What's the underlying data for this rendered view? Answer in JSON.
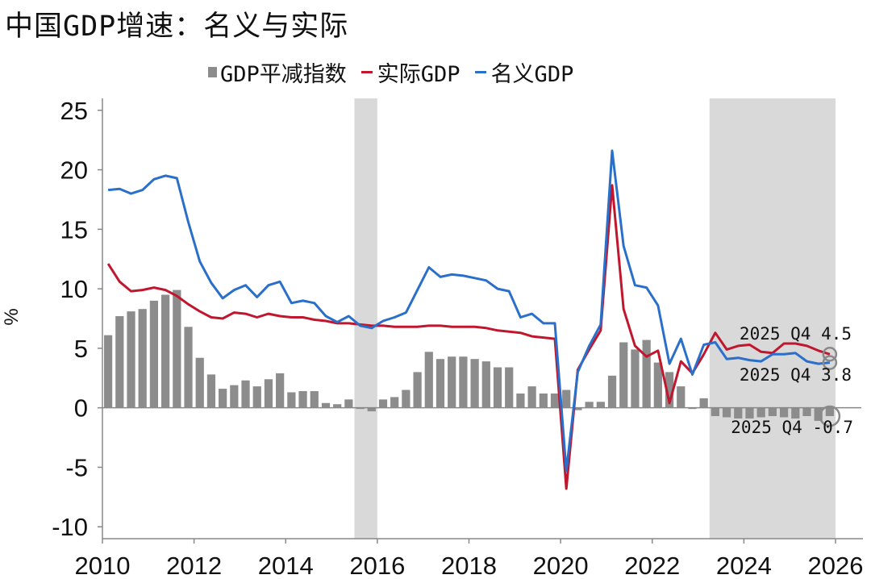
{
  "title": "中国GDP增速：名义与实际",
  "legend": {
    "deflator": "GDP平减指数",
    "real": "实际GDP",
    "nominal": "名义GDP"
  },
  "colors": {
    "deflator": "#8c8c8c",
    "real": "#c0172e",
    "nominal": "#2a6fc9",
    "shade": "#d9d9d9"
  },
  "annotations": [
    {
      "period": "2025 Q4",
      "value": "4.5"
    },
    {
      "period": "2025 Q4",
      "value": "3.8"
    },
    {
      "period": "2025 Q4",
      "value": "-0.7"
    }
  ],
  "chart_data": {
    "type": "bar+line",
    "ylabel": "%",
    "ylim": [
      -11,
      26
    ],
    "xlim": [
      2010,
      2026
    ],
    "yticks": [
      25,
      20,
      15,
      10,
      5,
      0,
      -5,
      -10
    ],
    "xticks": [
      2010,
      2012,
      2014,
      2016,
      2018,
      2020,
      2022,
      2024,
      2026
    ],
    "shaded_periods": [
      [
        2015.5,
        2016.0
      ],
      [
        2023.25,
        2026.0
      ]
    ],
    "x": [
      2010.125,
      2010.375,
      2010.625,
      2010.875,
      2011.125,
      2011.375,
      2011.625,
      2011.875,
      2012.125,
      2012.375,
      2012.625,
      2012.875,
      2013.125,
      2013.375,
      2013.625,
      2013.875,
      2014.125,
      2014.375,
      2014.625,
      2014.875,
      2015.125,
      2015.375,
      2015.625,
      2015.875,
      2016.125,
      2016.375,
      2016.625,
      2016.875,
      2017.125,
      2017.375,
      2017.625,
      2017.875,
      2018.125,
      2018.375,
      2018.625,
      2018.875,
      2019.125,
      2019.375,
      2019.625,
      2019.875,
      2020.125,
      2020.375,
      2020.625,
      2020.875,
      2021.125,
      2021.375,
      2021.625,
      2021.875,
      2022.125,
      2022.375,
      2022.625,
      2022.875,
      2023.125,
      2023.375,
      2023.625,
      2023.875,
      2024.125,
      2024.375,
      2024.625,
      2024.875,
      2025.125,
      2025.375,
      2025.625,
      2025.875
    ],
    "series": [
      {
        "name": "GDP平减指数",
        "kind": "bar",
        "values": [
          6.1,
          7.7,
          8.1,
          8.3,
          9.0,
          9.5,
          9.9,
          6.8,
          4.2,
          2.8,
          1.6,
          1.9,
          2.3,
          1.8,
          2.4,
          2.9,
          1.3,
          1.4,
          1.4,
          0.4,
          0.3,
          0.7,
          -0.1,
          -0.3,
          0.7,
          0.9,
          1.5,
          3.0,
          4.7,
          4.1,
          4.3,
          4.3,
          4.1,
          3.9,
          3.4,
          3.4,
          1.2,
          1.8,
          1.2,
          1.2,
          1.5,
          -0.2,
          0.5,
          0.5,
          2.7,
          5.5,
          4.9,
          5.7,
          3.8,
          3.0,
          1.8,
          -0.1,
          0.8,
          -0.7,
          -0.8,
          -0.9,
          -0.9,
          -0.8,
          -0.7,
          -0.8,
          -0.9,
          -0.7,
          -1.1,
          -0.7
        ]
      },
      {
        "name": "实际GDP",
        "kind": "line",
        "values": [
          12.1,
          10.6,
          9.8,
          9.9,
          10.1,
          9.9,
          9.4,
          8.7,
          8.1,
          7.6,
          7.5,
          8.0,
          7.9,
          7.6,
          7.9,
          7.7,
          7.6,
          7.6,
          7.4,
          7.3,
          7.1,
          7.1,
          7.0,
          6.9,
          6.9,
          6.8,
          6.8,
          6.8,
          6.9,
          6.9,
          6.8,
          6.8,
          6.8,
          6.7,
          6.5,
          6.4,
          6.3,
          6.0,
          5.9,
          5.8,
          -6.8,
          3.2,
          4.9,
          6.5,
          18.7,
          8.3,
          5.2,
          4.3,
          4.8,
          0.4,
          3.9,
          2.9,
          4.5,
          6.3,
          4.9,
          5.2,
          5.3,
          4.7,
          4.6,
          5.4,
          5.4,
          5.2,
          4.8,
          4.5
        ]
      },
      {
        "name": "名义GDP",
        "kind": "line",
        "values": [
          18.3,
          18.4,
          18.0,
          18.3,
          19.2,
          19.5,
          19.3,
          15.6,
          12.3,
          10.5,
          9.2,
          9.9,
          10.3,
          9.3,
          10.3,
          10.6,
          8.8,
          9.0,
          8.8,
          7.7,
          7.2,
          7.7,
          6.9,
          6.7,
          7.3,
          7.6,
          8.0,
          9.9,
          11.8,
          11.0,
          11.2,
          11.1,
          10.9,
          10.7,
          10.0,
          9.8,
          7.6,
          7.9,
          7.1,
          7.1,
          -5.3,
          3.0,
          5.2,
          7.0,
          21.6,
          13.6,
          10.3,
          10.1,
          8.6,
          3.7,
          5.8,
          2.8,
          5.3,
          5.5,
          4.1,
          4.2,
          4.0,
          3.9,
          4.5,
          4.5,
          4.6,
          3.9,
          3.7,
          3.8
        ]
      }
    ]
  }
}
